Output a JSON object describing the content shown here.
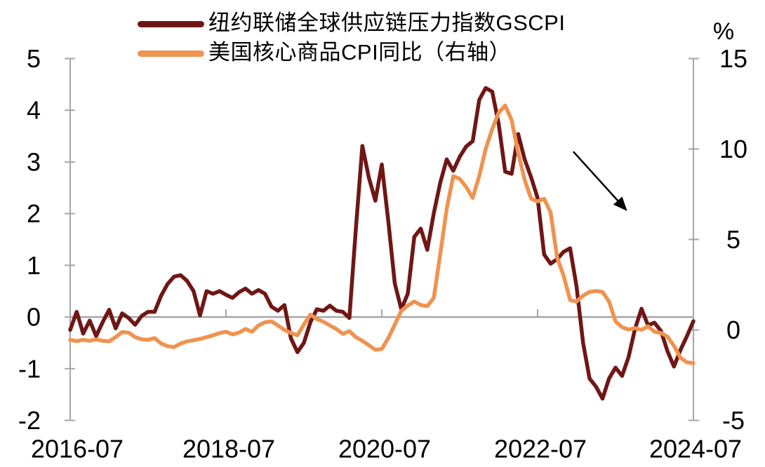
{
  "figure": {
    "background": "#FFFFFF"
  },
  "legend": {
    "items": [
      {
        "label": "纽约联储全球供应链压力指数GSCPI",
        "color": "#6F1715"
      },
      {
        "label": "美国核心商品CPI同比（右轴）",
        "color": "#EF9350"
      }
    ]
  },
  "chart_data": {
    "type": "line",
    "title": "",
    "x_start": "2016-07",
    "x_end": "2024-07",
    "x_frequency": "monthly",
    "x_tick_months": [
      0,
      24,
      48,
      72,
      96
    ],
    "x_tick_labels": [
      "2016-07",
      "2018-07",
      "2020-07",
      "2022-07",
      "2024-07"
    ],
    "left_axis": {
      "range": [
        -2,
        5
      ],
      "ticks": [
        5,
        4,
        3,
        2,
        1,
        0,
        -1,
        -2
      ],
      "tick_labels": [
        "5",
        "4",
        "3",
        "2",
        "1",
        "0",
        "-1",
        "-2"
      ]
    },
    "right_axis": {
      "range": [
        -5,
        15
      ],
      "ticks": [
        15,
        10,
        5,
        0,
        -5
      ],
      "tick_labels": [
        "15",
        "10",
        "5",
        "0",
        "-5"
      ],
      "unit_label": "%"
    },
    "grid": {
      "zero_line": true,
      "other_gridlines": false
    },
    "legend_position": "top-left",
    "series": [
      {
        "name": "纽约联储全球供应链压力指数GSCPI",
        "axis": "left",
        "color": "#6F1715",
        "values": [
          -0.25,
          0.1,
          -0.32,
          -0.07,
          -0.37,
          -0.1,
          0.14,
          -0.22,
          0.07,
          -0.02,
          -0.15,
          0.02,
          0.1,
          0.1,
          0.41,
          0.64,
          0.78,
          0.81,
          0.7,
          0.5,
          0.03,
          0.5,
          0.45,
          0.5,
          0.43,
          0.37,
          0.48,
          0.55,
          0.45,
          0.52,
          0.45,
          0.2,
          0.12,
          0.23,
          -0.41,
          -0.68,
          -0.5,
          -0.1,
          0.15,
          0.12,
          0.22,
          0.12,
          0.1,
          -0.02,
          1.7,
          3.31,
          2.7,
          2.25,
          2.95,
          1.85,
          0.65,
          0.15,
          0.45,
          1.55,
          1.71,
          1.3,
          2.0,
          2.6,
          3.05,
          2.83,
          3.1,
          3.3,
          3.4,
          4.2,
          4.43,
          4.36,
          3.74,
          2.81,
          2.77,
          3.54,
          3.05,
          2.7,
          2.3,
          1.21,
          1.03,
          1.12,
          1.26,
          1.33,
          0.59,
          -0.5,
          -1.19,
          -1.35,
          -1.58,
          -1.19,
          -0.98,
          -1.14,
          -0.78,
          -0.23,
          0.16,
          -0.16,
          -0.11,
          -0.27,
          -0.66,
          -0.96,
          -0.64,
          -0.37,
          -0.08
        ]
      },
      {
        "name": "美国核心商品CPI同比（右轴）",
        "axis": "right",
        "color": "#EF9350",
        "values": [
          -0.55,
          -0.62,
          -0.55,
          -0.6,
          -0.52,
          -0.6,
          -0.63,
          -0.4,
          -0.12,
          -0.15,
          -0.4,
          -0.52,
          -0.55,
          -0.45,
          -0.75,
          -0.9,
          -0.95,
          -0.75,
          -0.63,
          -0.57,
          -0.5,
          -0.4,
          -0.3,
          -0.18,
          -0.1,
          -0.25,
          -0.15,
          0.05,
          -0.1,
          0.25,
          0.42,
          0.47,
          0.25,
          0.0,
          -0.17,
          -0.3,
          0.3,
          0.85,
          0.6,
          0.45,
          0.25,
          0.05,
          -0.22,
          -0.07,
          -0.4,
          -0.6,
          -0.85,
          -1.1,
          -1.05,
          -0.45,
          0.3,
          1.06,
          1.35,
          1.57,
          1.38,
          1.31,
          1.76,
          4.2,
          6.7,
          8.5,
          8.35,
          7.9,
          7.3,
          8.5,
          10.0,
          11.1,
          12.0,
          12.4,
          11.6,
          9.8,
          8.3,
          7.25,
          7.1,
          7.25,
          6.5,
          4.0,
          3.0,
          1.65,
          1.57,
          1.9,
          2.1,
          2.15,
          2.1,
          1.57,
          0.47,
          0.15,
          0.02,
          0.1,
          0.0,
          0.2,
          -0.1,
          -0.17,
          -0.37,
          -0.88,
          -1.53,
          -1.79,
          -1.84
        ]
      }
    ],
    "annotations": [
      {
        "type": "arrow",
        "meaning": "downward-trend",
        "color": "#000000",
        "x_from_month": 77.5,
        "y_from_left": 3.2,
        "x_to_month": 85.8,
        "y_to_left": 2.05
      }
    ]
  }
}
